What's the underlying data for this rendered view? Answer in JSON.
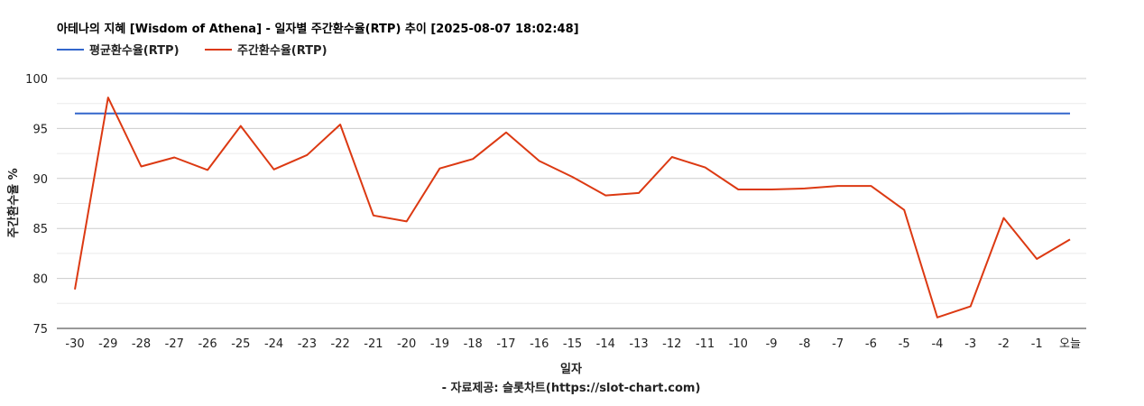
{
  "chart_data": {
    "type": "line",
    "title": "아테나의 지혜 [Wisdom of Athena] - 일자별 주간환수율(RTP) 추이 [2025-08-07 18:02:48]",
    "xlabel": "일자",
    "ylabel": "주간환수율 %",
    "source": "- 자료제공: 슬롯차트(https://slot-chart.com)",
    "ylim": [
      75,
      100
    ],
    "yticks": [
      75,
      80,
      85,
      90,
      95,
      100
    ],
    "grid": true,
    "legend_position": "top-left",
    "categories": [
      "-30",
      "-29",
      "-28",
      "-27",
      "-26",
      "-25",
      "-24",
      "-23",
      "-22",
      "-21",
      "-20",
      "-19",
      "-18",
      "-17",
      "-16",
      "-15",
      "-14",
      "-13",
      "-12",
      "-11",
      "-10",
      "-9",
      "-8",
      "-7",
      "-6",
      "-5",
      "-4",
      "-3",
      "-2",
      "-1",
      "오늘"
    ],
    "series": [
      {
        "name": "평균환수율(RTP)",
        "color": "#3366cc",
        "values": [
          96.5,
          96.5,
          96.5,
          96.5,
          96.49,
          96.49,
          96.49,
          96.49,
          96.49,
          96.49,
          96.49,
          96.49,
          96.49,
          96.49,
          96.49,
          96.49,
          96.49,
          96.49,
          96.49,
          96.49,
          96.49,
          96.49,
          96.49,
          96.49,
          96.49,
          96.49,
          96.49,
          96.5,
          96.5,
          96.5,
          96.5
        ]
      },
      {
        "name": "주간환수율(RTP)",
        "color": "#dc3912",
        "values": [
          78.9,
          98.1,
          91.2,
          92.1,
          90.85,
          95.25,
          90.9,
          92.35,
          95.4,
          86.3,
          85.7,
          91.0,
          91.95,
          94.6,
          91.75,
          90.15,
          88.3,
          88.55,
          92.15,
          91.1,
          88.9,
          88.9,
          89.0,
          89.25,
          89.25,
          86.85,
          76.1,
          77.2,
          86.05,
          81.95,
          83.9
        ]
      }
    ]
  }
}
